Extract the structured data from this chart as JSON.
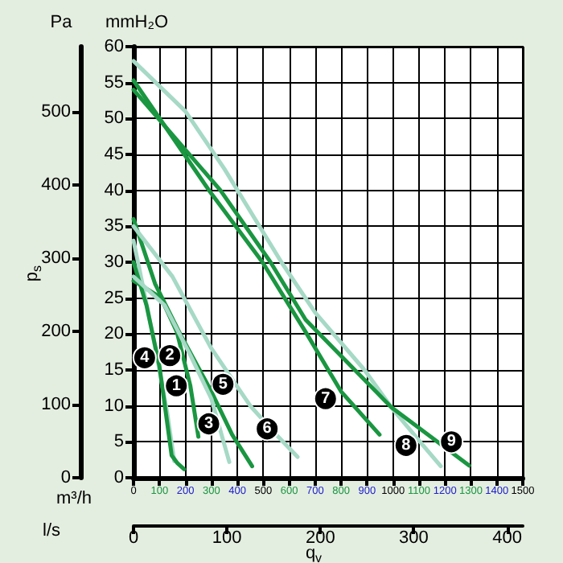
{
  "chart_data": {
    "type": "line",
    "xlabel": "m³/h",
    "x2label": "l/s",
    "ylabel": "mmH₂O",
    "y2label": "Pa",
    "xlim": [
      0,
      1500
    ],
    "xticks": [
      0,
      100,
      200,
      300,
      400,
      500,
      600,
      700,
      800,
      900,
      1000,
      1100,
      1200,
      1300,
      1400,
      1500
    ],
    "x2lim": [
      0,
      416.7
    ],
    "x2ticks": [
      0,
      100,
      200,
      300,
      400
    ],
    "ylim": [
      0,
      60
    ],
    "yticks": [
      0,
      5,
      10,
      15,
      20,
      25,
      30,
      35,
      40,
      45,
      50,
      55,
      60
    ],
    "y2lim": [
      0,
      588.6
    ],
    "y2ticks": [
      0,
      100,
      200,
      300,
      400,
      500
    ],
    "grid": true,
    "marker": "none",
    "line_style": "solid",
    "series": [
      {
        "color": "#1a9641",
        "x": [
          0,
          105,
          167,
          219,
          250
        ],
        "values": [
          27.4,
          25.1,
          20.3,
          12.8,
          5.7
        ]
      },
      {
        "color": "#a6d9c6",
        "x": [
          0,
          40,
          90,
          130,
          157
        ],
        "values": [
          33,
          26,
          17,
          9,
          2.3
        ]
      },
      {
        "color": "#1a9641",
        "x": [
          0,
          50,
          100,
          147,
          170,
          195
        ],
        "values": [
          30,
          24,
          15.5,
          3.1,
          2,
          1.2
        ]
      },
      {
        "color": "#1a9641",
        "x": [
          0,
          83,
          180,
          300,
          380,
          457
        ],
        "values": [
          36,
          27,
          20,
          12,
          6,
          1.6
        ]
      },
      {
        "color": "#a6d9c6",
        "x": [
          0,
          120,
          220,
          300,
          369
        ],
        "values": [
          28,
          24,
          17,
          11,
          2.2
        ]
      },
      {
        "color": "#a6d9c6",
        "x": [
          0,
          150,
          300,
          450,
          550,
          632
        ],
        "values": [
          35,
          28,
          18,
          10,
          6,
          2.9
        ]
      },
      {
        "color": "#a6d9c6",
        "x": [
          0,
          200,
          350,
          570,
          700,
          890,
          1000,
          1116,
          1184
        ],
        "values": [
          58,
          51,
          43,
          30,
          23,
          15,
          9.5,
          4.5,
          1.6
        ]
      },
      {
        "color": "#1a9641",
        "x": [
          0,
          291,
          497,
          663,
          800,
          948
        ],
        "values": [
          55.3,
          40,
          30,
          20.3,
          12,
          6
        ]
      },
      {
        "color": "#1a9641",
        "x": [
          0,
          335,
          528,
          663,
          994,
          1293
        ],
        "values": [
          54,
          40,
          30,
          22,
          9.8,
          1.7
        ]
      }
    ],
    "annotations": [
      "p$_{s}$",
      "q$_{v}$",
      {
        "text": "1",
        "x": 165,
        "y": 12.8
      },
      {
        "text": "2",
        "x": 140,
        "y": 17
      },
      {
        "text": "3",
        "x": 290,
        "y": 7.5
      },
      {
        "text": "4",
        "x": 43,
        "y": 16.7
      },
      {
        "text": "5",
        "x": 345,
        "y": 13
      },
      {
        "text": "6",
        "x": 515,
        "y": 6.8
      },
      {
        "text": "7",
        "x": 740,
        "y": 11
      },
      {
        "text": "8",
        "x": 1050,
        "y": 4.5
      },
      {
        "text": "9",
        "x": 1225,
        "y": 5
      }
    ]
  }
}
